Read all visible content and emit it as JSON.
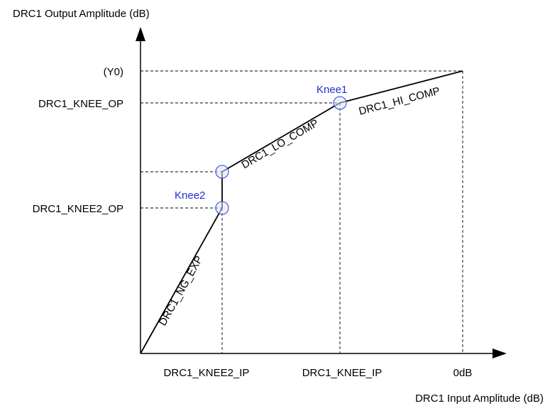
{
  "axes": {
    "y_title": "DRC1 Output Amplitude (dB)",
    "x_title": "DRC1 Input Amplitude (dB)"
  },
  "y_labels": {
    "y0": "(Y0)",
    "knee_op": "DRC1_KNEE_OP",
    "knee2_op": "DRC1_KNEE2_OP"
  },
  "x_labels": {
    "knee2_ip": "DRC1_KNEE2_IP",
    "knee_ip": "DRC1_KNEE_IP",
    "zero_db": "0dB"
  },
  "knees": {
    "knee1": "Knee1",
    "knee2": "Knee2"
  },
  "segments": {
    "ng_exp": "DRC1_NG_EXP",
    "lo_comp": "DRC1_LO_COMP",
    "hi_comp": "DRC1_HI_COMP"
  },
  "colors": {
    "knee": "#1f2fd6",
    "lines": "#000000"
  }
}
